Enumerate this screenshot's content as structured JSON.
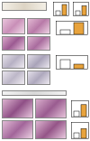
{
  "chart_data": [
    {
      "type": "bar",
      "categories": [
        null,
        null
      ],
      "values": [
        1,
        2.4
      ],
      "colors": [
        "#ffffff",
        "#e8a33d"
      ],
      "ylim": [
        0,
        3
      ],
      "tick_labels": false
    },
    {
      "type": "bar",
      "categories": [
        null,
        null
      ],
      "values": [
        1,
        2.1
      ],
      "colors": [
        "#ffffff",
        "#e8a33d"
      ],
      "ylim": [
        0,
        3
      ],
      "tick_labels": false
    },
    {
      "type": "bar",
      "categories": [
        null,
        null
      ],
      "values": [
        1,
        2.6
      ],
      "colors": [
        "#ffffff",
        "#e8a33d"
      ],
      "ylim": [
        0,
        3
      ],
      "tick_labels": false
    },
    {
      "type": "bar",
      "categories": [
        null,
        null
      ],
      "values": [
        1,
        0.5
      ],
      "colors": [
        "#ffffff",
        "#e8a33d"
      ],
      "ylim": [
        0,
        1.5
      ],
      "tick_labels": false
    },
    {
      "type": "bar",
      "categories": [
        null,
        null
      ],
      "values": [
        1,
        2.2
      ],
      "colors": [
        "#ffffff",
        "#e8a33d"
      ],
      "ylim": [
        0,
        3
      ],
      "tick_labels": false
    },
    {
      "type": "bar",
      "categories": [
        null,
        null
      ],
      "values": [
        1,
        1.8
      ],
      "colors": [
        "#ffffff",
        "#e8a33d"
      ],
      "ylim": [
        0,
        3
      ],
      "tick_labels": false
    }
  ]
}
